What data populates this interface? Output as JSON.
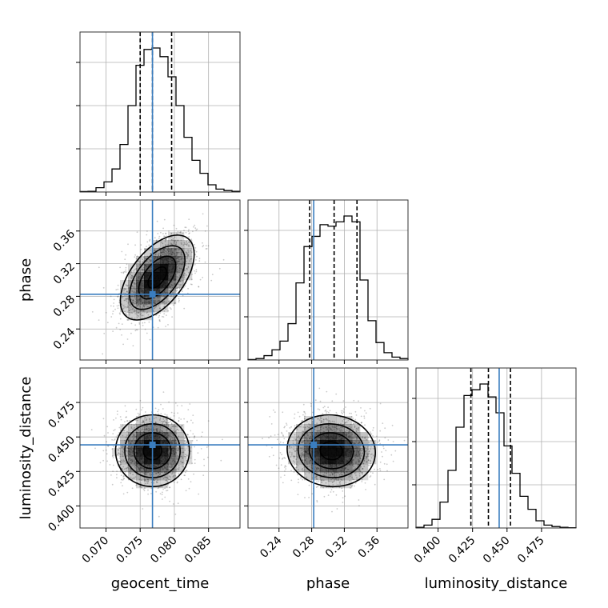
{
  "chart_data": {
    "type": "corner",
    "parameters": [
      "geocent_time",
      "phase",
      "luminosity_distance"
    ],
    "truths": {
      "geocent_time": 0.0768,
      "phase": 0.2825,
      "luminosity_distance": 0.4443
    },
    "colors": {
      "truth": "#3a7dbf",
      "hist": "#000000",
      "grid": "#b0b0b0"
    },
    "grid": true,
    "ranges": {
      "geocent_time": [
        0.0662,
        0.0896
      ],
      "phase": [
        0.202,
        0.398
      ],
      "luminosity_distance": [
        0.384,
        0.5
      ]
    },
    "ticks": {
      "geocent_time": [
        "0.070",
        "0.075",
        "0.080",
        "0.085"
      ],
      "phase": [
        "0.24",
        "0.28",
        "0.32",
        "0.36"
      ],
      "luminosity_distance": [
        "0.400",
        "0.425",
        "0.450",
        "0.475"
      ]
    },
    "histograms": {
      "geocent_time": {
        "bin_range": [
          0.0662,
          0.0896
        ],
        "counts": [
          0.3,
          0.5,
          3,
          7,
          16,
          33,
          60,
          88,
          99,
          100,
          94,
          80,
          60,
          38,
          22,
          13,
          5,
          2,
          1,
          0.5
        ],
        "quantiles": [
          0.075,
          0.0768,
          0.0796
        ]
      },
      "phase": {
        "bin_range": [
          0.202,
          0.398
        ],
        "counts": [
          0.3,
          1,
          3,
          7,
          13,
          25,
          53,
          78,
          85,
          93,
          92,
          95,
          99,
          95,
          55,
          27,
          12,
          5,
          2,
          1
        ],
        "quantiles": [
          0.2775,
          0.3075,
          0.3355
        ]
      },
      "luminosity_distance": {
        "bin_range": [
          0.384,
          0.5
        ],
        "counts": [
          0.5,
          2,
          6,
          18,
          40,
          70,
          92,
          96,
          100,
          91,
          80,
          57,
          38,
          22,
          13,
          5,
          2,
          1,
          0.5,
          0.2
        ],
        "quantiles": [
          0.4238,
          0.4365,
          0.4525
        ]
      }
    },
    "densities": [
      {
        "x": "geocent_time",
        "y": "phase",
        "mean": [
          0.0775,
          0.303
        ],
        "sd": [
          0.0027,
          0.026
        ],
        "rho": 0.55
      },
      {
        "x": "geocent_time",
        "y": "luminosity_distance",
        "mean": [
          0.0768,
          0.44
        ],
        "sd": [
          0.0027,
          0.013
        ],
        "rho": 0.0
      },
      {
        "x": "phase",
        "y": "luminosity_distance",
        "mean": [
          0.304,
          0.44
        ],
        "sd": [
          0.027,
          0.013
        ],
        "rho": -0.05
      }
    ],
    "contour_levels_sigma": [
      0.5,
      1.0,
      1.5,
      2.0
    ]
  }
}
